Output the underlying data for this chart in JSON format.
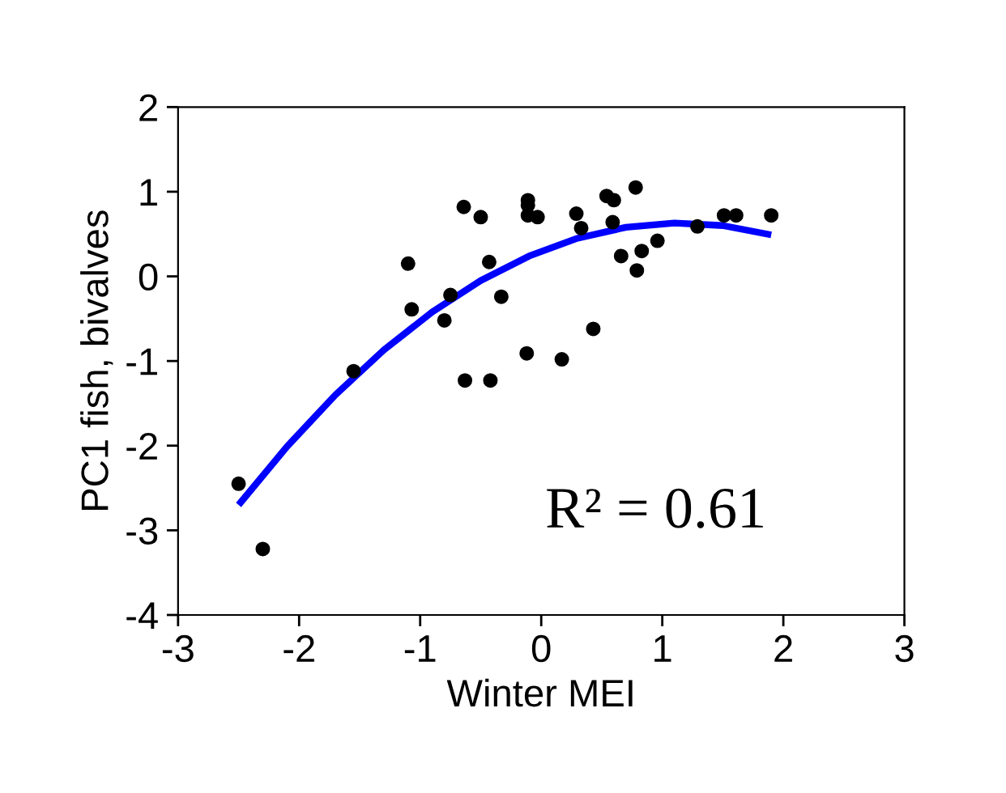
{
  "chart_data": {
    "type": "scatter",
    "xlabel": "Winter MEI",
    "ylabel": "PC1 fish, bivalves",
    "xlim": [
      -3,
      3
    ],
    "xticks": [
      {
        "value": -3,
        "label": "-3"
      },
      {
        "value": -2,
        "label": "-2"
      },
      {
        "value": -1,
        "label": "-1"
      },
      0,
      1,
      2,
      3
    ],
    "ylim": [
      -4,
      2
    ],
    "yticks": [
      {
        "value": -4,
        "label": "-4"
      },
      {
        "value": -3,
        "label": "-3"
      },
      {
        "value": -2,
        "label": "-2"
      },
      {
        "value": -1,
        "label": "-1"
      },
      0,
      1,
      2
    ],
    "grid": false,
    "legend": false,
    "series": [
      {
        "marker": "circle",
        "color": "#000000",
        "x": [
          -2.5,
          -2.3,
          -1.55,
          -1.1,
          -1.07,
          -0.8,
          -0.75,
          -0.63,
          -0.64,
          -0.5,
          -0.43,
          -0.42,
          -0.33,
          -0.12,
          -0.11,
          -0.11,
          -0.11,
          -0.03,
          0.17,
          0.29,
          0.33,
          0.43,
          0.54,
          0.6,
          0.59,
          0.66,
          0.78,
          0.79,
          0.83,
          0.96,
          1.29,
          1.51,
          1.61,
          1.9
        ],
        "values": [
          -2.45,
          -3.22,
          -1.12,
          0.15,
          -0.39,
          -0.52,
          -0.22,
          -1.23,
          0.82,
          0.7,
          0.17,
          -1.23,
          -0.24,
          -0.91,
          0.9,
          0.84,
          0.72,
          0.7,
          -0.98,
          0.74,
          0.57,
          -0.62,
          0.95,
          0.9,
          0.64,
          0.24,
          1.05,
          0.07,
          0.3,
          0.42,
          0.59,
          0.72,
          0.72,
          0.72
        ]
      },
      {
        "type": "line",
        "marker": "none",
        "color": "#0000ff",
        "x": [
          -2.5,
          -2.1,
          -1.7,
          -1.3,
          -0.9,
          -0.5,
          -0.1,
          0.3,
          0.7,
          1.1,
          1.5,
          1.9
        ],
        "values": [
          -2.7,
          -2.01,
          -1.4,
          -0.87,
          -0.42,
          -0.05,
          0.24,
          0.45,
          0.58,
          0.63,
          0.6,
          0.49
        ]
      }
    ],
    "annotations": [
      "R² = 0.61"
    ]
  }
}
